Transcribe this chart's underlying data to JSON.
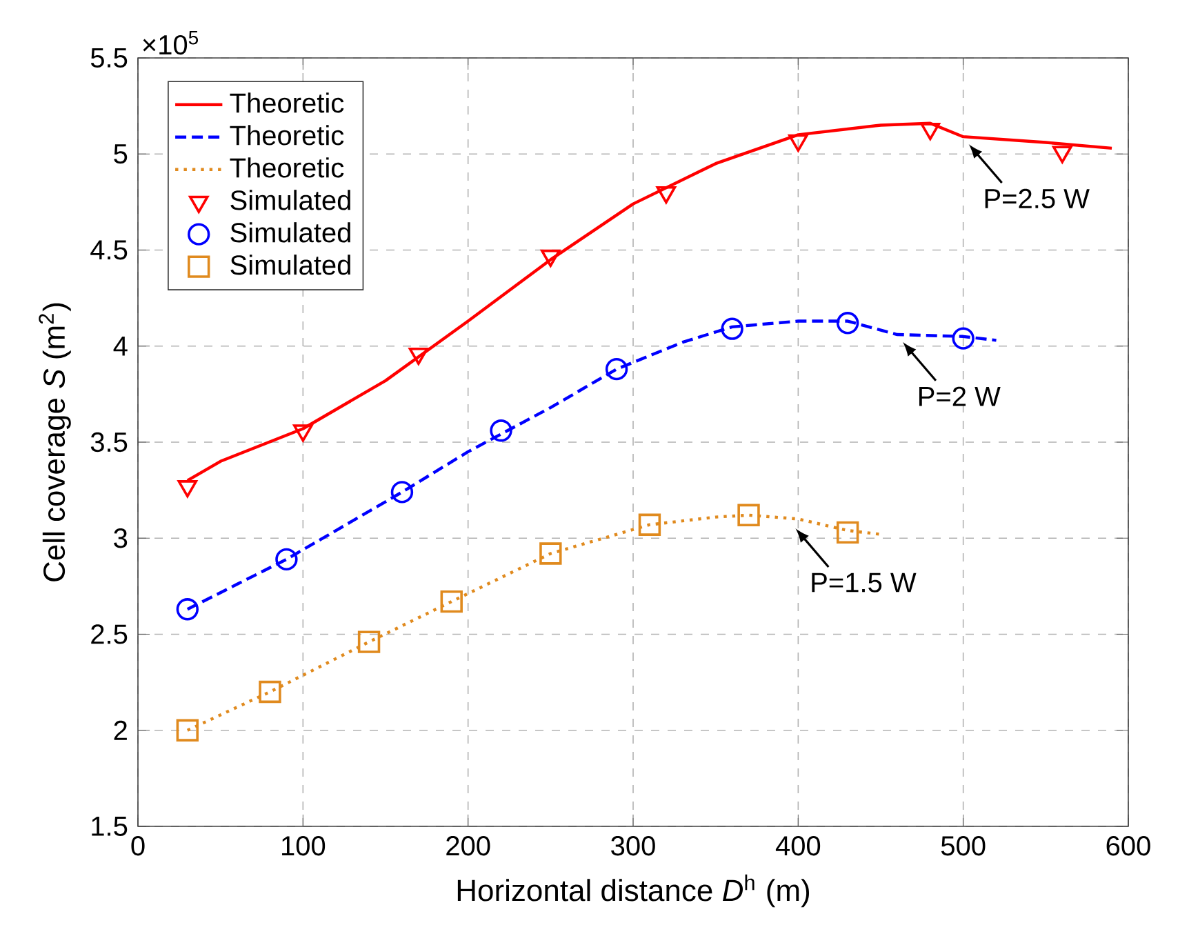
{
  "chart_data": {
    "type": "line",
    "xlabel": "Horizontal distance *D*$^{h}$ (m)",
    "ylabel": "Cell coverage *S* (m$^{2}$)",
    "xlim": [
      0,
      600
    ],
    "xticks": [
      0,
      100,
      200,
      300,
      400,
      500,
      600
    ],
    "ylim": [
      1.5,
      5.5
    ],
    "yticks": [
      1.5,
      2,
      2.5,
      3,
      3.5,
      4,
      4.5,
      5,
      5.5
    ],
    "grid": true,
    "legend": "top left",
    "annotations": [
      "×10$^{5}$",
      {
        "text": "P=2.5 W",
        "x": 500,
        "y": 5.08
      },
      {
        "text": "P=2 W",
        "x": 460,
        "y": 4.05
      },
      {
        "text": "P=1.5 W",
        "x": 395,
        "y": 3.08
      }
    ],
    "series": [
      {
        "name": "Theoretic",
        "color": "#ff0000",
        "line_style": "solid",
        "marker": "none",
        "x": [
          30,
          50,
          100,
          150,
          200,
          250,
          300,
          350,
          400,
          450,
          480,
          500,
          550,
          590
        ],
        "values": [
          3.3,
          3.4,
          3.57,
          3.82,
          4.13,
          4.45,
          4.74,
          4.95,
          5.1,
          5.15,
          5.16,
          5.09,
          5.06,
          5.03
        ]
      },
      {
        "name": "Theoretic",
        "color": "#0000ff",
        "line_style": "dashed",
        "marker": "none",
        "x": [
          30,
          60,
          90,
          120,
          160,
          200,
          250,
          290,
          330,
          360,
          400,
          430,
          460,
          500,
          520
        ],
        "values": [
          2.63,
          2.76,
          2.89,
          3.04,
          3.24,
          3.45,
          3.68,
          3.88,
          4.02,
          4.1,
          4.13,
          4.13,
          4.06,
          4.05,
          4.03
        ]
      },
      {
        "name": "Theoretic",
        "color": "#e08a1e",
        "line_style": "dotted",
        "marker": "none",
        "x": [
          30,
          80,
          140,
          190,
          250,
          310,
          350,
          370,
          400,
          430,
          450
        ],
        "values": [
          2.0,
          2.2,
          2.46,
          2.67,
          2.92,
          3.07,
          3.11,
          3.12,
          3.1,
          3.04,
          3.02
        ]
      },
      {
        "name": "Simulated",
        "type": "scatter",
        "color": "#ff0000",
        "marker": "triangle",
        "x": [
          30,
          100,
          170,
          250,
          320,
          400,
          480,
          560
        ],
        "values": [
          3.27,
          3.56,
          3.96,
          4.47,
          4.8,
          5.07,
          5.13,
          5.01
        ]
      },
      {
        "name": "Simulated",
        "type": "scatter",
        "color": "#0000ff",
        "marker": "circle",
        "x": [
          30,
          90,
          160,
          220,
          290,
          360,
          430,
          500
        ],
        "values": [
          2.63,
          2.89,
          3.24,
          3.56,
          3.88,
          4.09,
          4.12,
          4.04
        ]
      },
      {
        "name": "Simulated",
        "type": "scatter",
        "color": "#e08a1e",
        "marker": "square",
        "x": [
          30,
          80,
          140,
          190,
          250,
          310,
          370,
          430
        ],
        "values": [
          2.0,
          2.2,
          2.46,
          2.67,
          2.92,
          3.07,
          3.12,
          3.03
        ]
      }
    ]
  }
}
